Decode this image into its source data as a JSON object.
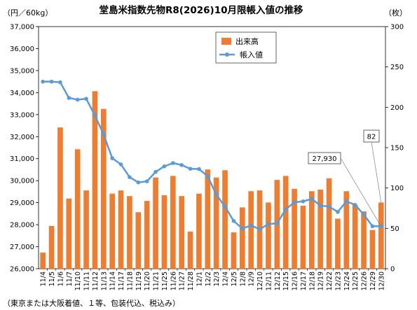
{
  "chart_data": {
    "type": "bar",
    "title": "堂島米指数先物R8(2026)10月限帳入値の推移",
    "y_left_unit": "（円／60kg）",
    "y_right_unit": "（枚）",
    "note": "（東京または大阪着値、１等、包装代込、税込み）",
    "y_left_range": [
      26000,
      37000
    ],
    "y_left_ticks": [
      "26,000",
      "27,000",
      "28,000",
      "29,000",
      "30,000",
      "31,000",
      "32,000",
      "33,000",
      "34,000",
      "35,000",
      "36,000",
      "37,000"
    ],
    "y_right_range": [
      0,
      300
    ],
    "y_right_ticks": [
      "0",
      "50",
      "100",
      "150",
      "200",
      "250",
      "300"
    ],
    "categories": [
      "11/4",
      "11/5",
      "11/6",
      "11/7",
      "11/10",
      "11/11",
      "11/12",
      "11/13",
      "11/14",
      "11/17",
      "11/18",
      "11/19",
      "11/20",
      "11/21",
      "11/25",
      "11/26",
      "11/27",
      "11/28",
      "12/1",
      "12/2",
      "12/3",
      "12/4",
      "12/5",
      "12/8",
      "12/9",
      "12/10",
      "12/11",
      "12/12",
      "12/15",
      "12/16",
      "12/17",
      "12/18",
      "12/19",
      "12/22",
      "12/23",
      "12/24",
      "12/25",
      "12/26",
      "12/29",
      "12/30"
    ],
    "xtick_labels": [
      "11/4",
      "11/5",
      "11/6",
      "11/7",
      "11/10",
      "11/11",
      "11/12",
      "11/13",
      "11/14",
      "11/17",
      "11/18",
      "11/19",
      "11/20",
      "11/21",
      "11/25",
      "11/26",
      "11/27",
      "11/28",
      "12/1",
      "12/2",
      "12/3",
      "12/4",
      "12/5",
      "12/8",
      "12/9",
      "12/10",
      "12/11",
      "12/12",
      "12/15",
      "12/16",
      "12/17",
      "12/18",
      "12/19",
      "12/22",
      "12/23",
      "12/24",
      "12/25",
      "12/26",
      "12/29",
      "12/30"
    ],
    "series": [
      {
        "name": "出来高",
        "type": "bar",
        "axis": "right",
        "color": "#ED7D31",
        "values": [
          20,
          53,
          175,
          87,
          148,
          97,
          220,
          198,
          93,
          97,
          90,
          70,
          84,
          113,
          91,
          115,
          90,
          46,
          93,
          123,
          113,
          122,
          45,
          76,
          96,
          97,
          82,
          110,
          115,
          99,
          78,
          96,
          98,
          112,
          62,
          96,
          79,
          71,
          48,
          82
        ]
      },
      {
        "name": "帳入値",
        "type": "line",
        "axis": "left",
        "color": "#5B9BD5",
        "values": [
          34500,
          34500,
          34470,
          33760,
          33680,
          33720,
          32960,
          32100,
          31020,
          30740,
          30160,
          29920,
          29970,
          30400,
          30650,
          30800,
          30710,
          30540,
          30530,
          30200,
          29360,
          28820,
          28170,
          27820,
          27970,
          27790,
          28030,
          28060,
          28700,
          29020,
          29060,
          29170,
          28870,
          28820,
          28580,
          29060,
          28900,
          28460,
          27930,
          27930
        ]
      }
    ],
    "annotations": [
      {
        "text": "27,930",
        "target_series": "帳入値",
        "target_index": 39
      },
      {
        "text": "82",
        "target_series": "出来高",
        "target_index": 39
      }
    ],
    "grid": false,
    "legend_position": "top-center"
  }
}
